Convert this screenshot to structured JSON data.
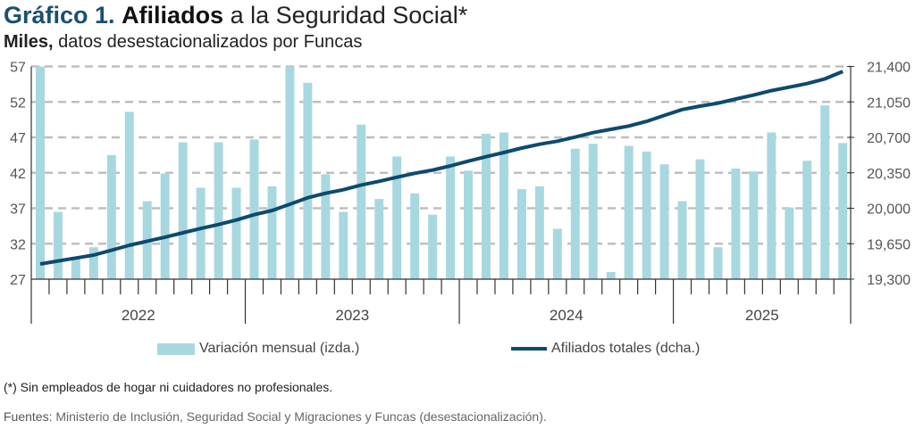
{
  "header": {
    "title_number": "Gráfico 1.",
    "title_bold": "Afiliados",
    "title_rest": "a la Seguridad Social*",
    "subtitle_bold": "Miles,",
    "subtitle_rest": "datos desestacionalizados por Funcas"
  },
  "colors": {
    "title_accent": "#1b4f72",
    "bars": "#a8d8df",
    "line": "#0d4a6e",
    "grid": "#bfbfbf"
  },
  "chart_data": {
    "type": "bar+line",
    "title": "Gráfico 1. Afiliados a la Seguridad Social*",
    "subtitle": "Miles, datos desestacionalizados por Funcas",
    "x_groups": [
      {
        "label": "2022",
        "months": 12
      },
      {
        "label": "2023",
        "months": 12
      },
      {
        "label": "2024",
        "months": 12
      },
      {
        "label": "2025",
        "months": 10
      }
    ],
    "categories": [
      "2022-01",
      "2022-02",
      "2022-03",
      "2022-04",
      "2022-05",
      "2022-06",
      "2022-07",
      "2022-08",
      "2022-09",
      "2022-10",
      "2022-11",
      "2022-12",
      "2023-01",
      "2023-02",
      "2023-03",
      "2023-04",
      "2023-05",
      "2023-06",
      "2023-07",
      "2023-08",
      "2023-09",
      "2023-10",
      "2023-11",
      "2023-12",
      "2024-01",
      "2024-02",
      "2024-03",
      "2024-04",
      "2024-05",
      "2024-06",
      "2024-07",
      "2024-08",
      "2024-09",
      "2024-10",
      "2024-11",
      "2024-12",
      "2025-01",
      "2025-02",
      "2025-03",
      "2025-04",
      "2025-05",
      "2025-06",
      "2025-07",
      "2025-08",
      "2025-09",
      "2025-10"
    ],
    "series": [
      {
        "name": "Variación mensual (izda.)",
        "type": "bar",
        "axis": "left",
        "values": [
          57.0,
          36.5,
          29.9,
          31.5,
          44.5,
          50.6,
          38.0,
          41.9,
          46.3,
          39.9,
          46.3,
          39.9,
          46.7,
          40.1,
          57.0,
          54.7,
          41.8,
          36.5,
          48.8,
          38.3,
          44.3,
          39.1,
          36.1,
          44.3,
          42.3,
          47.5,
          47.7,
          39.7,
          40.1,
          34.1,
          45.4,
          46.1,
          28.0,
          45.8,
          45.0,
          43.2,
          38.0,
          43.9,
          31.5,
          42.6,
          42.2,
          47.7,
          37.1,
          43.7,
          51.5,
          46.2
        ]
      },
      {
        "name": "Afiliados totales (dcha.)",
        "type": "line",
        "axis": "right",
        "values": [
          19450,
          19480,
          19509,
          19538,
          19585,
          19635,
          19675,
          19715,
          19758,
          19800,
          19840,
          19884,
          19937,
          19978,
          20040,
          20104,
          20148,
          20183,
          20230,
          20266,
          20306,
          20345,
          20377,
          20418,
          20465,
          20509,
          20550,
          20594,
          20632,
          20662,
          20703,
          20747,
          20779,
          20812,
          20858,
          20917,
          20975,
          21008,
          21037,
          21079,
          21117,
          21161,
          21196,
          21231,
          21278,
          21351
        ]
      }
    ],
    "y_left": {
      "min": 27,
      "max": 57,
      "ticks": [
        "57",
        "52",
        "47",
        "42",
        "37",
        "32",
        "27"
      ],
      "tick_values": [
        57,
        52,
        47,
        42,
        37,
        32,
        27
      ]
    },
    "y_right": {
      "min": 19300,
      "max": 21400,
      "ticks": [
        "21,400",
        "21,050",
        "20,700",
        "20,350",
        "20,000",
        "19,650",
        "19,300"
      ],
      "tick_values": [
        21400,
        21050,
        20700,
        20350,
        20000,
        19650,
        19300
      ]
    },
    "grid": true,
    "legend_position": "bottom"
  },
  "legend": {
    "bars_label": "Variación mensual (izda.)",
    "line_label": "Afiliados totales (dcha.)"
  },
  "footer": {
    "note": "(*) Sin empleados de hogar ni cuidadores no profesionales.",
    "source_label": "Fuentes:",
    "source_text": " Ministerio de Inclusión, Seguridad Social y Migraciones y Funcas (desestacionalización)."
  }
}
